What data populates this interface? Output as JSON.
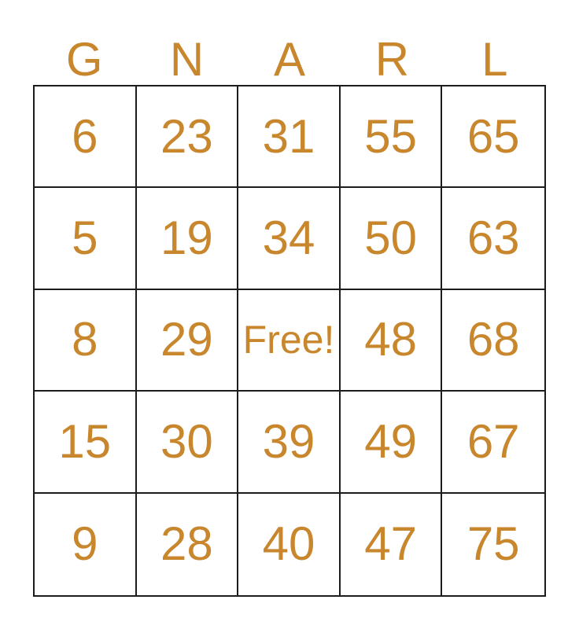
{
  "page": {
    "background_color": "#FFFFFF"
  },
  "bingo_card": {
    "accent_color": "#C8862D",
    "grid_line_color": "#1C1C1C",
    "cell_background_color": "#FFFFFF",
    "header_letters": [
      "G",
      "N",
      "A",
      "R",
      "L"
    ],
    "rows": [
      [
        "6",
        "23",
        "31",
        "55",
        "65"
      ],
      [
        "5",
        "19",
        "34",
        "50",
        "63"
      ],
      [
        "8",
        "29",
        "Free!",
        "48",
        "68"
      ],
      [
        "15",
        "30",
        "39",
        "49",
        "67"
      ],
      [
        "9",
        "28",
        "40",
        "47",
        "75"
      ]
    ],
    "free_cell_label": "Free!"
  }
}
